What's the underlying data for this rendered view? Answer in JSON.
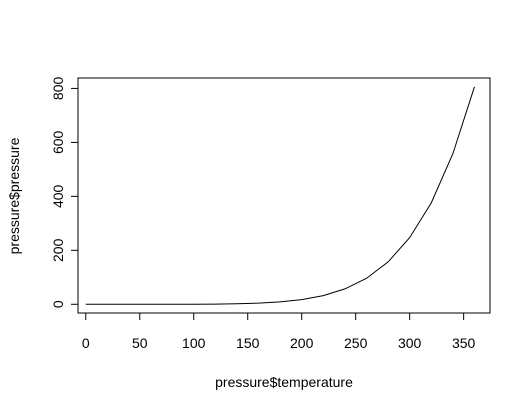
{
  "chart_data": {
    "type": "line",
    "xlabel": "pressure$temperature",
    "ylabel": "pressure$pressure",
    "xlim": [
      -7.2,
      374.4
    ],
    "ylim": [
      -32.3,
      838.6
    ],
    "x_ticks": [
      0,
      50,
      100,
      150,
      200,
      250,
      300,
      350
    ],
    "y_ticks": [
      0,
      200,
      400,
      600,
      800
    ],
    "grid": false,
    "x": [
      0,
      20,
      40,
      60,
      80,
      100,
      120,
      140,
      160,
      180,
      200,
      220,
      240,
      260,
      280,
      300,
      320,
      340,
      360
    ],
    "series": [
      {
        "values": [
          0.0002,
          0.0012,
          0.006,
          0.03,
          0.09,
          0.27,
          0.75,
          1.85,
          4.2,
          8.8,
          17.3,
          32.1,
          57,
          96,
          157,
          247,
          376,
          558,
          806
        ],
        "color": "#000000"
      }
    ]
  }
}
